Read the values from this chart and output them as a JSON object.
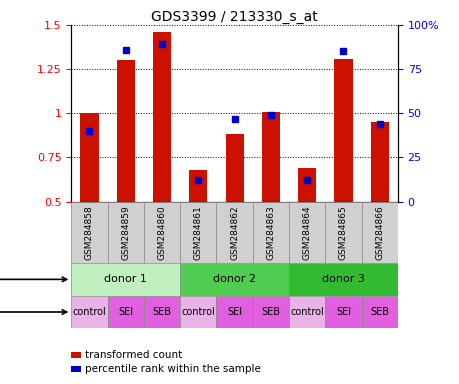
{
  "title": "GDS3399 / 213330_s_at",
  "samples": [
    "GSM284858",
    "GSM284859",
    "GSM284860",
    "GSM284861",
    "GSM284862",
    "GSM284863",
    "GSM284864",
    "GSM284865",
    "GSM284866"
  ],
  "red_values": [
    1.0,
    1.3,
    1.46,
    0.68,
    0.88,
    1.01,
    0.69,
    1.31,
    0.95
  ],
  "blue_pct": [
    40,
    86,
    89,
    12,
    47,
    49,
    12,
    85,
    44
  ],
  "ylim_left": [
    0.5,
    1.5
  ],
  "ylim_right": [
    0,
    100
  ],
  "yticks_left": [
    0.5,
    0.75,
    1.0,
    1.25,
    1.5
  ],
  "yticks_right": [
    0,
    25,
    50,
    75,
    100
  ],
  "ytick_labels_left": [
    "0.5",
    "0.75",
    "1",
    "1.25",
    "1.5"
  ],
  "ytick_labels_right": [
    "0",
    "25",
    "50",
    "75",
    "100%"
  ],
  "donors": [
    {
      "label": "donor 1",
      "start": 0,
      "end": 3,
      "color": "#c0f0c0"
    },
    {
      "label": "donor 2",
      "start": 3,
      "end": 6,
      "color": "#50cc50"
    },
    {
      "label": "donor 3",
      "start": 6,
      "end": 9,
      "color": "#30bb30"
    }
  ],
  "agents": [
    "control",
    "SEI",
    "SEB",
    "control",
    "SEI",
    "SEB",
    "control",
    "SEI",
    "SEB"
  ],
  "agent_color_control": "#e8b4e8",
  "agent_color_sei": "#e060e0",
  "agent_color_seb": "#e060e0",
  "sample_box_color": "#d0d0d0",
  "bar_color": "#cc1100",
  "blue_color": "#0000cc",
  "bar_bottom": 0.5,
  "legend_red": "transformed count",
  "legend_blue": "percentile rank within the sample"
}
